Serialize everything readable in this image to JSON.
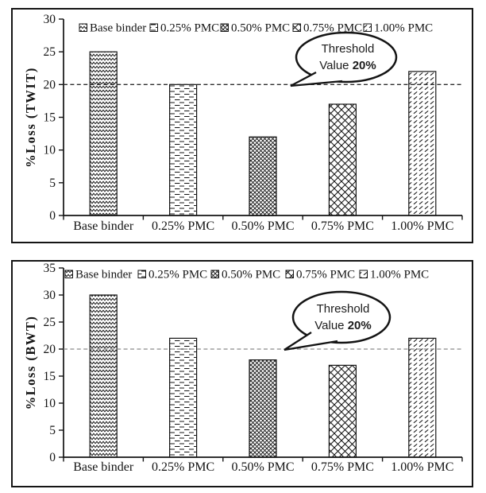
{
  "page": {
    "background": "#ffffff",
    "ink": "#141414"
  },
  "chart_data": [
    {
      "type": "bar",
      "title": "",
      "xlabel": "",
      "ylabel": "%Loss (TWIT)",
      "categories": [
        "Base binder",
        "0.25% PMC",
        "0.50% PMC",
        "0.75% PMC",
        "1.00% PMC"
      ],
      "values": [
        25,
        20,
        12,
        17,
        22
      ],
      "ylim": [
        0,
        30
      ],
      "ytick_step": 5,
      "grid": false,
      "legend_position": "top-inside",
      "legend": [
        "Base binder",
        "0.25% PMC",
        "0.50% PMC",
        "0.75% PMC",
        "1.00% PMC"
      ],
      "patterns": [
        "zigzag",
        "horizontal-dash",
        "diagonal-weave",
        "diamond-lattice",
        "slash-rows"
      ],
      "threshold": {
        "value": 20,
        "line_color": "#2e2e2e",
        "callout_line1": "Threshold",
        "callout_line2": "Value",
        "callout_bold": "20%"
      }
    },
    {
      "type": "bar",
      "title": "",
      "xlabel": "",
      "ylabel": "%Loss (BWT)",
      "categories": [
        "Base binder",
        "0.25% PMC",
        "0.50% PMC",
        "0.75% PMC",
        "1.00% PMC"
      ],
      "values": [
        30,
        22,
        18,
        17,
        22
      ],
      "ylim": [
        0,
        35
      ],
      "ytick_step": 5,
      "grid": false,
      "legend_position": "top-inside",
      "legend": [
        "Base binder",
        "0.25% PMC",
        "0.50% PMC",
        "0.75% PMC",
        "1.00% PMC"
      ],
      "patterns": [
        "zigzag",
        "horizontal-dash",
        "diagonal-weave",
        "diamond-lattice",
        "slash-rows"
      ],
      "threshold": {
        "value": 20,
        "line_color": "#8a8a8a",
        "callout_line1": "Threshold",
        "callout_line2": "Value",
        "callout_bold": "20%"
      }
    }
  ]
}
